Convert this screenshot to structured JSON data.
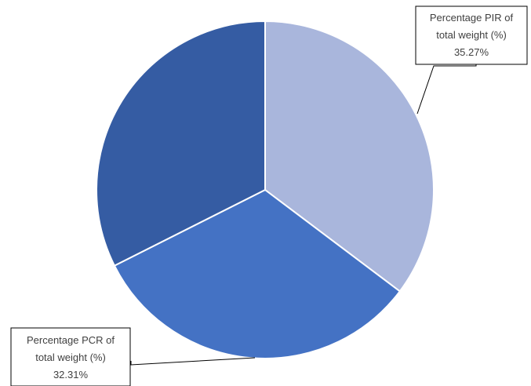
{
  "chart_data": {
    "type": "pie",
    "slices": [
      {
        "key": "pir",
        "label": "Percentage PIR of total weight (%)",
        "label_lines": [
          "Percentage PIR of",
          "total weight (%)"
        ],
        "value_label": "35.27%",
        "value": 35.27,
        "color": "#a9b6dc"
      },
      {
        "key": "pcr",
        "label": "Percentage PCR of total weight (%)",
        "label_lines": [
          "Percentage PCR of",
          "total weight (%)"
        ],
        "value_label": "32.31%",
        "value": 32.31,
        "color": "#4472c4"
      },
      {
        "key": "other",
        "label": "",
        "value": 32.42,
        "color": "#355ca3"
      }
    ],
    "start_angle": "12 o'clock",
    "direction": "clockwise",
    "legend": "none",
    "title": ""
  }
}
